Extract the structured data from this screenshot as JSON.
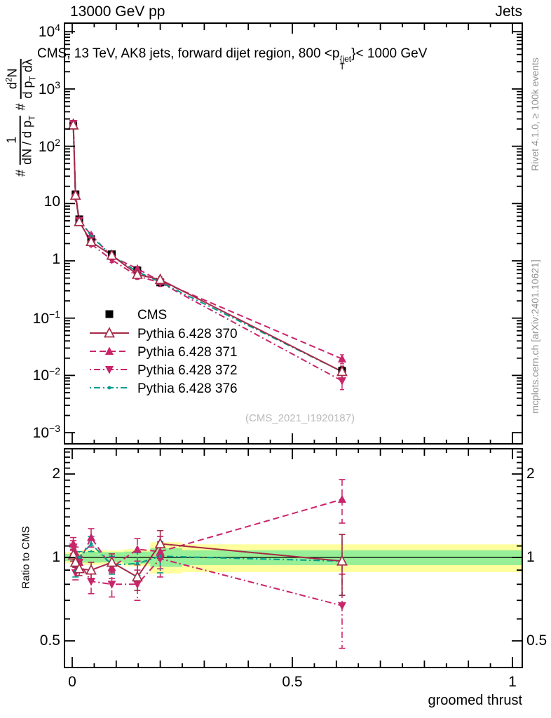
{
  "header": {
    "left": "13000 GeV pp",
    "right": "Jets"
  },
  "main_title": {
    "prefix": "CMS, 13 TeV, AK8 jets, forward dijet region, 800 <p",
    "sup": "{jet",
    "sub": "T",
    "suffix": "}< 1000 GeV"
  },
  "watermark": "(CMS_2021_I1920187)",
  "side_notes": {
    "top": "Rivet 4.1.0, ≥ 100k events",
    "bottom": "mcplots.cern.ch [arXiv:2401.10621]"
  },
  "y_axis_label": {
    "hash1": "#",
    "frac1_num": "1",
    "frac1_den": "dN / d p",
    "frac1_den_sub": "T",
    "hash2": "#",
    "frac2_num": "d",
    "frac2_num_sup": "2",
    "frac2_num_post": "N",
    "frac2_den": "d p",
    "frac2_den_sub": "T",
    "frac2_den_post": " dλ"
  },
  "ratio_axis_label": "Ratio to CMS",
  "x_axis_label": "groomed thrust",
  "legend": [
    {
      "label": "CMS",
      "color": "#000000",
      "marker": "square",
      "line": "none"
    },
    {
      "label": "Pythia 6.428 370",
      "color": "#a62b47",
      "marker": "triangle-open",
      "line": "solid"
    },
    {
      "label": "Pythia 6.428 371",
      "color": "#c9256b",
      "marker": "triangle-up",
      "line": "dashed"
    },
    {
      "label": "Pythia 6.428 372",
      "color": "#c9256b",
      "marker": "triangle-down",
      "line": "dashdot"
    },
    {
      "label": "Pythia 6.428 376",
      "color": "#009c8e",
      "marker": "dot",
      "line": "dashdot"
    }
  ],
  "chart_data": {
    "type": "line",
    "title": "CMS, 13 TeV, AK8 jets, forward dijet region, 800 < pT{jet} < 1000 GeV",
    "xlabel": "groomed thrust",
    "ylabel": "# 1/(dN/dpT) # d2N/(dpT dlambda)",
    "xlim": [
      -0.017,
      1.022
    ],
    "ylim_main": [
      0.001,
      10000
    ],
    "ylim_ratio": [
      0.4,
      2.47
    ],
    "grid": false,
    "legend_position": "upper-left-inside",
    "x": [
      0.0025,
      0.0075,
      0.016,
      0.043,
      0.09,
      0.148,
      0.2,
      0.613
    ],
    "cms": {
      "name": "CMS",
      "color": "#000000",
      "marker": "square",
      "values": [
        230,
        14.5,
        5.3,
        2.4,
        1.3,
        0.68,
        0.42,
        0.012
      ],
      "yerr_rel": [
        0.05,
        0.05,
        0.04,
        0.04,
        0.05,
        0.06,
        0.08,
        0.16
      ]
    },
    "series": [
      {
        "name": "Pythia 6.428 371",
        "color": "#c9256b",
        "line": "dashed",
        "marker": "triangle-up",
        "ratio": [
          1.12,
          1.04,
          0.96,
          1.18,
          0.92,
          1.07,
          1.05,
          1.62
        ],
        "ratio_err": [
          0.06,
          0.05,
          0.05,
          0.09,
          0.08,
          0.1,
          0.14,
          0.29
        ]
      },
      {
        "name": "Pythia 6.428 372",
        "color": "#c9256b",
        "line": "dashdot",
        "marker": "triangle-down",
        "ratio": [
          1.09,
          0.88,
          0.96,
          0.82,
          0.8,
          0.8,
          0.99,
          0.67
        ],
        "ratio_err": [
          0.06,
          0.05,
          0.05,
          0.08,
          0.08,
          0.1,
          0.14,
          0.2
        ]
      },
      {
        "name": "Pythia 6.428 376",
        "color": "#009c8e",
        "line": "dashdot",
        "marker": "dot",
        "ratio": [
          1.04,
          0.89,
          1.0,
          1.12,
          0.94,
          0.95,
          1.01,
          0.97
        ],
        "ratio_err": [
          0.05,
          0.04,
          0.05,
          0.07,
          0.07,
          0.09,
          0.13,
          0.24
        ]
      },
      {
        "name": "Pythia 6.428 370",
        "color": "#a62b47",
        "line": "solid",
        "marker": "triangle-open",
        "ratio": [
          1.02,
          0.96,
          0.91,
          0.9,
          0.96,
          0.85,
          1.12,
          0.97
        ],
        "ratio_err": [
          0.05,
          0.04,
          0.05,
          0.06,
          0.07,
          0.09,
          0.13,
          0.24
        ]
      }
    ],
    "ratio_reference": 1.0,
    "bands": [
      {
        "x0": -0.017,
        "x1": 0.0225,
        "yellow": [
          0.955,
          1.045
        ],
        "green": [
          0.97,
          1.03
        ]
      },
      {
        "x0": 0.0225,
        "x1": 0.0675,
        "yellow": [
          0.94,
          1.065
        ],
        "green": [
          0.958,
          1.048
        ]
      },
      {
        "x0": 0.0675,
        "x1": 0.1175,
        "yellow": [
          0.945,
          1.06
        ],
        "green": [
          0.96,
          1.045
        ]
      },
      {
        "x0": 0.1175,
        "x1": 0.1775,
        "yellow": [
          0.93,
          1.07
        ],
        "green": [
          0.95,
          1.05
        ]
      },
      {
        "x0": 0.1775,
        "x1": 0.25,
        "yellow": [
          0.875,
          1.135
        ],
        "green": [
          0.925,
          1.08
        ]
      },
      {
        "x0": 0.25,
        "x1": 1.022,
        "yellow": [
          0.885,
          1.115
        ],
        "green": [
          0.938,
          1.062
        ]
      }
    ],
    "band_colors": {
      "yellow": "#ffff9e",
      "green": "#97ef97"
    },
    "x_ticks": [
      {
        "text": "0",
        "value": 0
      },
      {
        "text": "0.5",
        "value": 0.5
      },
      {
        "text": "1",
        "value": 1
      }
    ],
    "main_y_ticks": [
      {
        "text": "10",
        "sup": "4",
        "value": 10000
      },
      {
        "text": "10",
        "sup": "3",
        "value": 1000
      },
      {
        "text": "10",
        "sup": "2",
        "value": 100
      },
      {
        "text": "10",
        "sup": "",
        "value": 10
      },
      {
        "text": "1",
        "sup": "",
        "value": 1
      },
      {
        "text": "10",
        "sup": "−1",
        "value": 0.1
      },
      {
        "text": "10",
        "sup": "−2",
        "value": 0.01
      },
      {
        "text": "10",
        "sup": "−3",
        "value": 0.001
      }
    ],
    "ratio_y_ticks": [
      {
        "text": "2",
        "value": 2
      },
      {
        "text": "1",
        "value": 1
      },
      {
        "text": "0.5",
        "value": 0.5
      }
    ]
  }
}
